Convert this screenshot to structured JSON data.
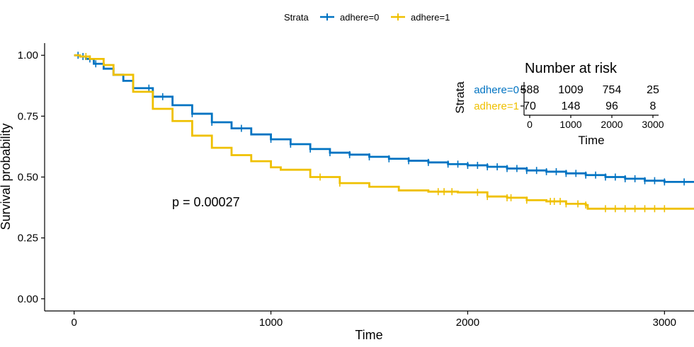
{
  "chart_data": {
    "type": "line",
    "title": "",
    "xlabel": "Time",
    "ylabel": "Survival probability",
    "xlim": [
      -150,
      3150
    ],
    "ylim": [
      -0.05,
      1.05
    ],
    "x_ticks": [
      0,
      1000,
      2000,
      3000
    ],
    "x_tick_labels": [
      "0",
      "1000",
      "2000",
      "3000"
    ],
    "y_ticks": [
      0,
      0.25,
      0.5,
      0.75,
      1.0
    ],
    "y_tick_labels": [
      "0.00",
      "0.25",
      "0.50",
      "0.75",
      "1.00"
    ],
    "grid": false,
    "legend": {
      "position": "top",
      "title": "Strata",
      "entries": [
        "adhere=0",
        "adhere=1"
      ]
    },
    "annotation": "p = 0.00027",
    "series": [
      {
        "name": "adhere=0",
        "color": "#0073C2",
        "x": [
          0,
          30,
          60,
          100,
          150,
          200,
          250,
          300,
          400,
          500,
          600,
          700,
          800,
          900,
          1000,
          1100,
          1200,
          1300,
          1400,
          1500,
          1600,
          1700,
          1800,
          1900,
          2000,
          2100,
          2200,
          2300,
          2400,
          2500,
          2600,
          2700,
          2800,
          2900,
          3000,
          3150
        ],
        "y": [
          1.0,
          0.995,
          0.985,
          0.965,
          0.945,
          0.92,
          0.895,
          0.865,
          0.83,
          0.795,
          0.76,
          0.725,
          0.7,
          0.675,
          0.655,
          0.635,
          0.615,
          0.6,
          0.592,
          0.583,
          0.575,
          0.567,
          0.56,
          0.553,
          0.548,
          0.542,
          0.535,
          0.527,
          0.522,
          0.515,
          0.508,
          0.5,
          0.493,
          0.485,
          0.48,
          0.48
        ],
        "censor_x": [
          20,
          45,
          80,
          110,
          300,
          380,
          450,
          600,
          700,
          850,
          1000,
          1100,
          1200,
          1300,
          1400,
          1500,
          1600,
          1700,
          1800,
          1900,
          1950,
          2000,
          2050,
          2100,
          2150,
          2200,
          2250,
          2300,
          2350,
          2400,
          2450,
          2500,
          2550,
          2600,
          2650,
          2700,
          2750,
          2800,
          2850,
          2900,
          2950,
          3000,
          3100
        ]
      },
      {
        "name": "adhere=1",
        "color": "#EFC000",
        "x": [
          0,
          30,
          80,
          150,
          200,
          300,
          400,
          500,
          600,
          700,
          800,
          900,
          1000,
          1050,
          1200,
          1350,
          1500,
          1650,
          1800,
          1950,
          2100,
          2200,
          2300,
          2400,
          2500,
          2600,
          2610,
          3150
        ],
        "y": [
          1.0,
          0.995,
          0.985,
          0.96,
          0.92,
          0.85,
          0.78,
          0.73,
          0.67,
          0.62,
          0.59,
          0.565,
          0.54,
          0.53,
          0.5,
          0.475,
          0.46,
          0.445,
          0.44,
          0.437,
          0.42,
          0.415,
          0.405,
          0.4,
          0.39,
          0.385,
          0.37,
          0.37
        ],
        "censor_x": [
          60,
          1250,
          1350,
          1850,
          1880,
          1920,
          2050,
          2100,
          2200,
          2220,
          2300,
          2420,
          2440,
          2470,
          2500,
          2560,
          2600,
          2700,
          2750,
          2800,
          2850,
          2900,
          2950,
          3000
        ]
      }
    ],
    "risk_table": {
      "title": "Number at risk",
      "ylabel": "Strata",
      "xlabel": "Time",
      "x_ticks": [
        0,
        1000,
        2000,
        3000
      ],
      "x_tick_labels": [
        "0",
        "1000",
        "2000",
        "3000"
      ],
      "rows": [
        {
          "label": "adhere=0",
          "color": "#0073C2",
          "values": [
            "588",
            "1009",
            "754",
            "25"
          ]
        },
        {
          "label": "adhere=1",
          "color": "#EFC000",
          "values": [
            "70",
            "148",
            "96",
            "8"
          ]
        }
      ]
    }
  }
}
